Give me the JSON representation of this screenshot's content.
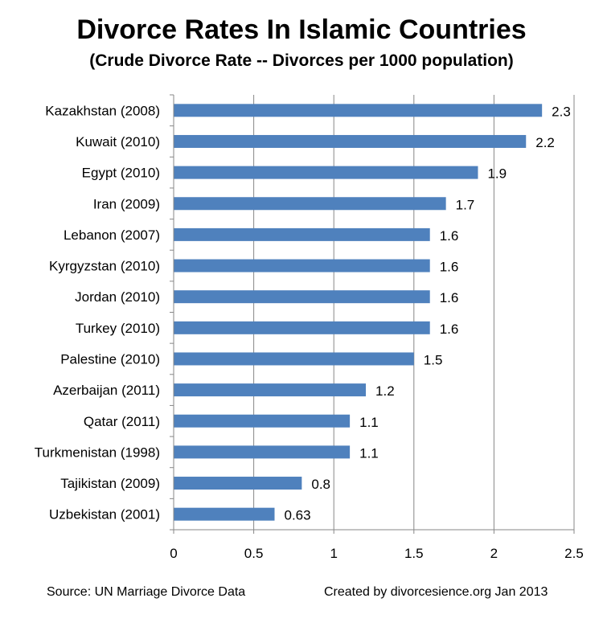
{
  "chart_data": {
    "type": "bar",
    "orientation": "horizontal",
    "title": "Divorce Rates In Islamic Countries",
    "subtitle": "(Crude Divorce Rate -- Divorces per 1000 population)",
    "categories": [
      "Kazakhstan (2008)",
      "Kuwait (2010)",
      "Egypt (2010)",
      "Iran (2009)",
      "Lebanon (2007)",
      "Kyrgyzstan (2010)",
      "Jordan (2010)",
      "Turkey (2010)",
      "Palestine (2010)",
      "Azerbaijan (2011)",
      "Qatar (2011)",
      "Turkmenistan (1998)",
      "Tajikistan (2009)",
      "Uzbekistan (2001)"
    ],
    "values": [
      2.3,
      2.2,
      1.9,
      1.7,
      1.6,
      1.6,
      1.6,
      1.6,
      1.5,
      1.2,
      1.1,
      1.1,
      0.8,
      0.63
    ],
    "value_labels": [
      "2.3",
      "2.2",
      "1.9",
      "1.7",
      "1.6",
      "1.6",
      "1.6",
      "1.6",
      "1.5",
      "1.2",
      "1.1",
      "1.1",
      "0.8",
      "0.63"
    ],
    "xlim": [
      0,
      2.5
    ],
    "xticks": [
      0,
      0.5,
      1,
      1.5,
      2,
      2.5
    ],
    "xtick_labels": [
      "0",
      "0.5",
      "1",
      "1.5",
      "2",
      "2.5"
    ],
    "grid": true,
    "bar_color": "#4f81bd",
    "grid_color": "#878787"
  },
  "footer": {
    "source": "Source:  UN Marriage Divorce Data",
    "credit": "Created by divorcesience.org Jan 2013"
  }
}
